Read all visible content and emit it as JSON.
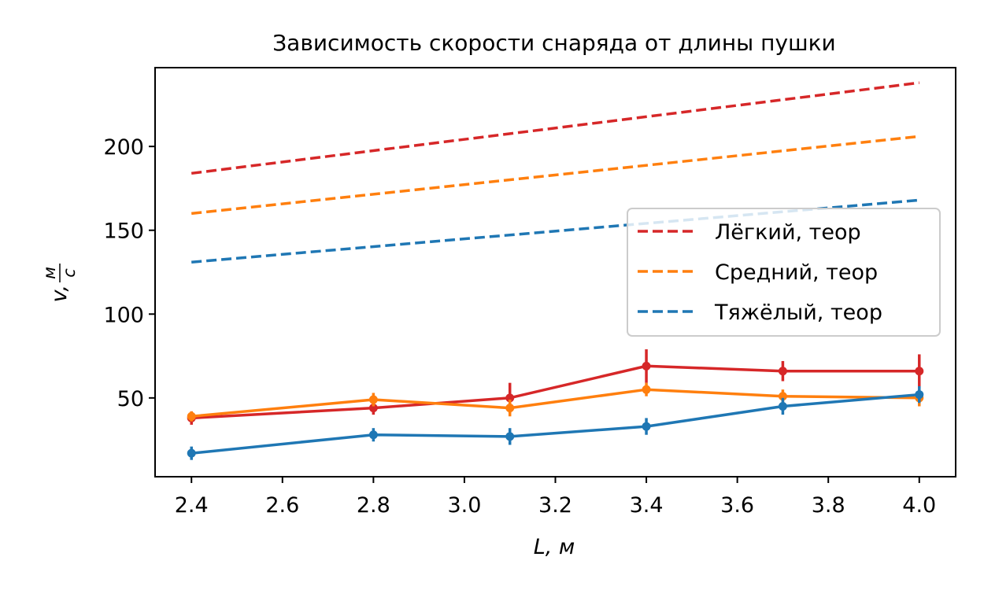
{
  "chart_data": {
    "type": "line",
    "title": "Зависимость скорости снаряда от длины пушки",
    "xlabel": "L, м",
    "ylabel_main": "v,",
    "ylabel_num": "м",
    "ylabel_den": "с",
    "xlim": [
      2.32,
      4.08
    ],
    "ylim": [
      3,
      247
    ],
    "xticks": [
      "2.4",
      "2.6",
      "2.8",
      "3.0",
      "3.2",
      "3.4",
      "3.6",
      "3.8",
      "4.0"
    ],
    "yticks": [
      "50",
      "100",
      "150",
      "200"
    ],
    "grid": false,
    "legend_position": "center-right",
    "x": [
      2.4,
      2.8,
      3.1,
      3.4,
      3.7,
      4.0
    ],
    "series": [
      {
        "name": "Лёгкий, теор",
        "style": "dashed",
        "color": "#d62728",
        "x": [
          2.4,
          4.0
        ],
        "values": [
          184,
          238
        ]
      },
      {
        "name": "Средний, теор",
        "style": "dashed",
        "color": "#ff7f0e",
        "x": [
          2.4,
          4.0
        ],
        "values": [
          160,
          206
        ]
      },
      {
        "name": "Тяжёлый, теор",
        "style": "dashed",
        "color": "#1f77b4",
        "x": [
          2.4,
          4.0
        ],
        "values": [
          131,
          168
        ]
      },
      {
        "style": "solid",
        "color": "#d62728",
        "x": [
          2.4,
          2.8,
          3.1,
          3.4,
          3.7,
          4.0
        ],
        "values": [
          38,
          44,
          50,
          69,
          66,
          66
        ],
        "errors": [
          4,
          4,
          9,
          10,
          6,
          10
        ]
      },
      {
        "style": "solid",
        "color": "#ff7f0e",
        "x": [
          2.4,
          2.8,
          3.1,
          3.4,
          3.7,
          4.0
        ],
        "values": [
          39,
          49,
          44,
          55,
          51,
          50
        ],
        "errors": [
          3,
          4,
          5,
          4,
          4,
          5
        ]
      },
      {
        "style": "solid",
        "color": "#1f77b4",
        "x": [
          2.4,
          2.8,
          3.1,
          3.4,
          3.7,
          4.0
        ],
        "values": [
          17,
          28,
          27,
          33,
          45,
          52
        ],
        "errors": [
          4,
          4,
          5,
          5,
          5,
          5
        ]
      }
    ]
  }
}
